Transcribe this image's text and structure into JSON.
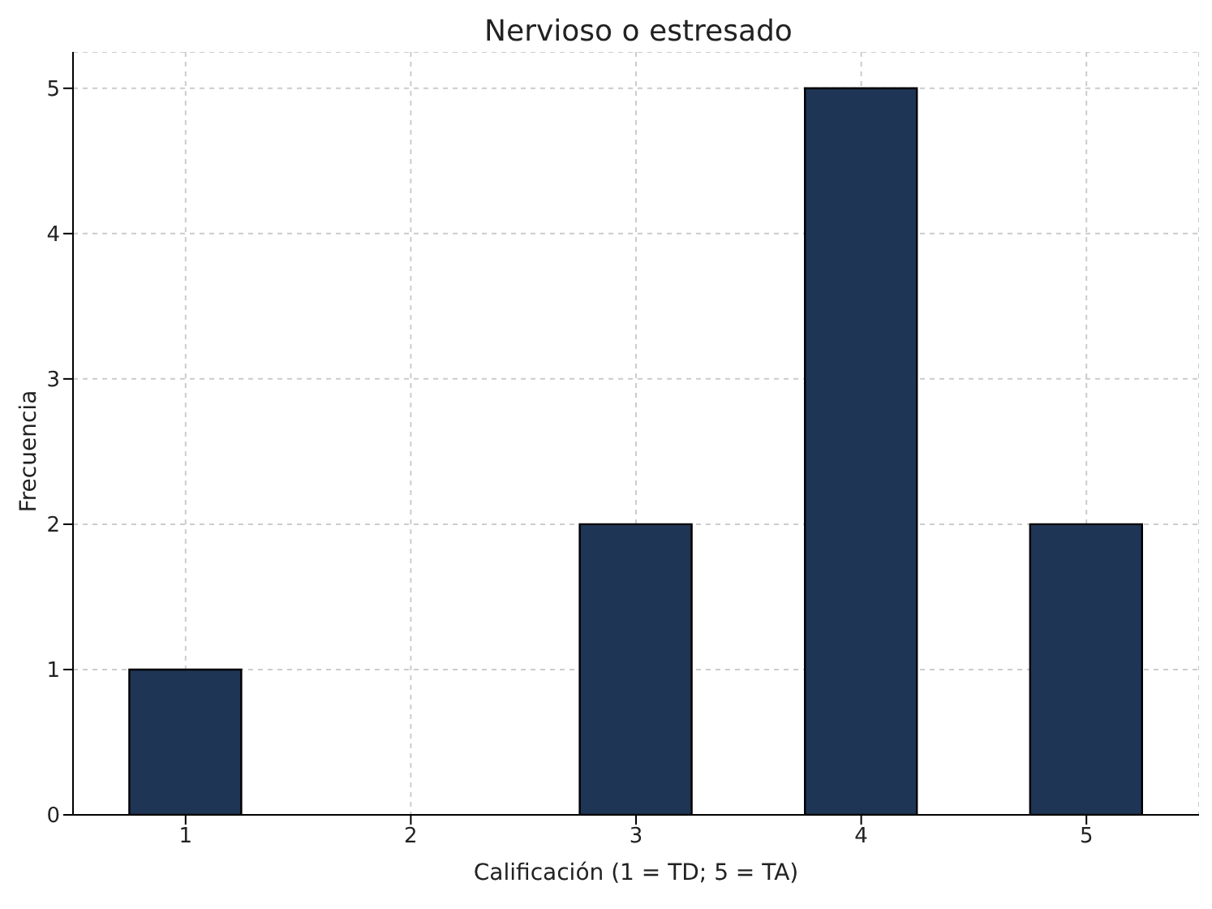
{
  "chart_data": {
    "type": "bar",
    "title": "Nervioso o estresado",
    "xlabel": "Calificación (1 = TD; 5 = TA)",
    "ylabel": "Frecuencia",
    "categories": [
      "1",
      "2",
      "3",
      "4",
      "5"
    ],
    "values": [
      1,
      0,
      2,
      5,
      2
    ],
    "color": "#1f3556",
    "ylim": [
      0,
      5.25
    ],
    "yticks": [
      0,
      1,
      2,
      3,
      4,
      5
    ],
    "grid": true
  }
}
